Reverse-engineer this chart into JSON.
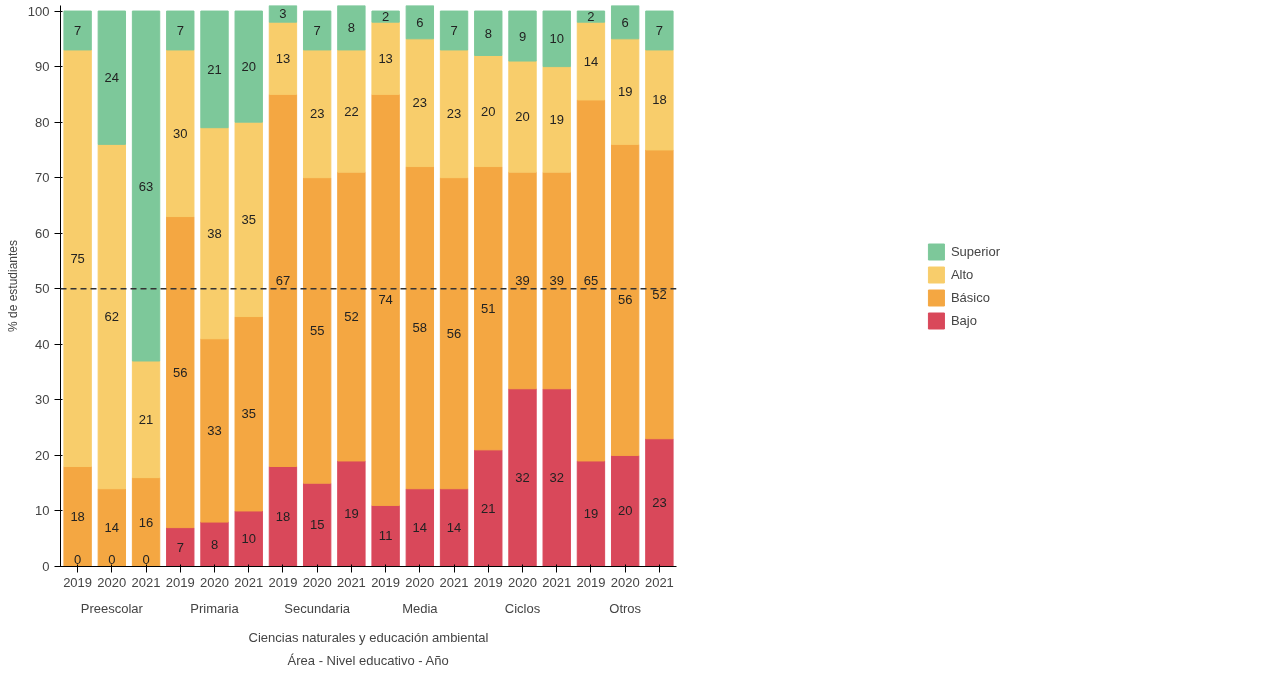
{
  "chart_data": {
    "type": "bar",
    "stacked": true,
    "ylabel": "% de estudiantes",
    "xlabel": "Área - Nivel educativo - Año",
    "categories": [
      "2019",
      "2020",
      "2021",
      "2019",
      "2020",
      "2021",
      "2019",
      "2020",
      "2021",
      "2019",
      "2020",
      "2021",
      "2019",
      "2020",
      "2021",
      "2019",
      "2020",
      "2021"
    ],
    "annotations": [
      "Preescolar",
      "Primaria",
      "Secundaria",
      "Media",
      "Ciclos",
      "Otros",
      "Ciencias naturales y educación ambiental"
    ],
    "series": [
      {
        "name": "Bajo",
        "color": "#d9485a",
        "values": [
          0,
          0,
          0,
          7,
          8,
          10,
          18,
          15,
          19,
          11,
          14,
          14,
          21,
          32,
          32,
          19,
          20,
          23
        ]
      },
      {
        "name": "Básico",
        "color": "#f4a742",
        "values": [
          18,
          14,
          16,
          56,
          33,
          35,
          67,
          55,
          52,
          74,
          58,
          56,
          51,
          39,
          39,
          65,
          56,
          52
        ]
      },
      {
        "name": "Alto",
        "color": "#f8cd6b",
        "values": [
          75,
          62,
          21,
          30,
          38,
          35,
          13,
          23,
          22,
          13,
          23,
          23,
          20,
          20,
          19,
          14,
          19,
          18
        ]
      },
      {
        "name": "Superior",
        "color": "#7dc89a",
        "values": [
          7,
          24,
          63,
          7,
          21,
          20,
          3,
          7,
          8,
          2,
          6,
          7,
          8,
          9,
          10,
          2,
          6,
          7
        ]
      }
    ],
    "ylim": [
      0,
      101
    ],
    "yticks": [
      0,
      10,
      20,
      30,
      40,
      50,
      60,
      70,
      80,
      90,
      100
    ],
    "ref_lines": [
      {
        "axis": "y",
        "value": 50,
        "line_style": "dashed",
        "color": "#333333"
      }
    ],
    "data_labels": true,
    "grid": false,
    "legend": "right"
  }
}
